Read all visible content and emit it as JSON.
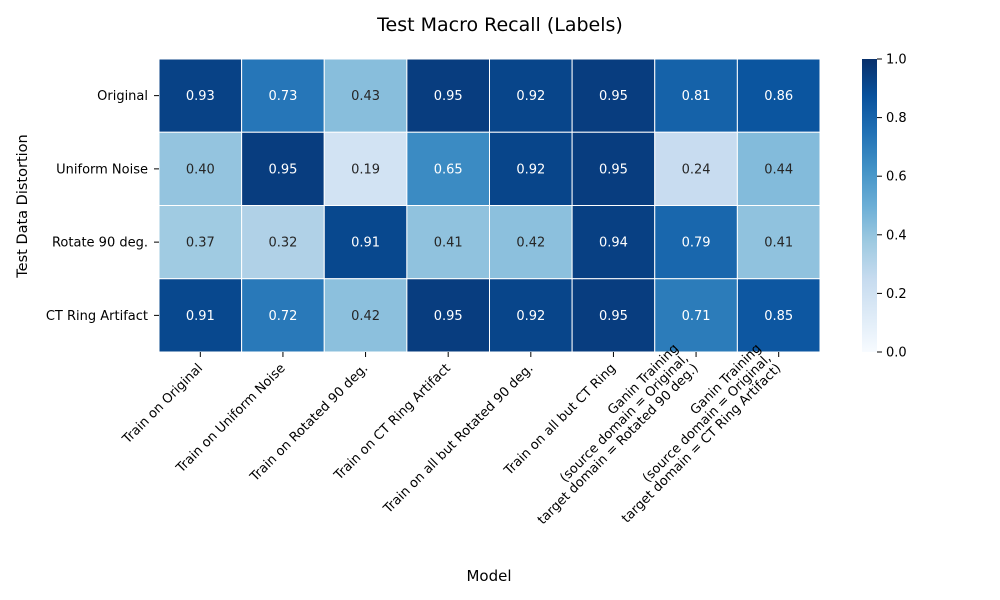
{
  "chart_data": {
    "type": "heatmap",
    "title": "Test Macro Recall (Labels)",
    "xlabel": "Model",
    "ylabel": "Test Data Distortion",
    "rows": [
      "Original",
      "Uniform Noise",
      "Rotate 90 deg.",
      "CT Ring Artifact"
    ],
    "columns": [
      [
        "Train on Original"
      ],
      [
        "Train on Uniform Noise"
      ],
      [
        "Train on Rotated 90 deg."
      ],
      [
        "Train on CT Ring Artifact"
      ],
      [
        "Train on all but Rotated 90 deg."
      ],
      [
        "Train on all but CT Ring"
      ],
      [
        "Ganin Training",
        "(source domain = Original,",
        "target domain = Rotated 90 deg.)"
      ],
      [
        "Ganin Training",
        "(source domain = Original,",
        "target domain = CT Ring Artifact)"
      ]
    ],
    "values": [
      [
        0.93,
        0.73,
        0.43,
        0.95,
        0.92,
        0.95,
        0.81,
        0.86
      ],
      [
        0.4,
        0.95,
        0.19,
        0.65,
        0.92,
        0.95,
        0.24,
        0.44
      ],
      [
        0.37,
        0.32,
        0.91,
        0.41,
        0.42,
        0.94,
        0.79,
        0.41
      ],
      [
        0.91,
        0.72,
        0.42,
        0.95,
        0.92,
        0.95,
        0.71,
        0.85
      ]
    ],
    "value_labels": [
      [
        "0.93",
        "0.73",
        "0.43",
        "0.95",
        "0.92",
        "0.95",
        "0.81",
        "0.86"
      ],
      [
        "0.40",
        "0.95",
        "0.19",
        "0.65",
        "0.92",
        "0.95",
        "0.24",
        "0.44"
      ],
      [
        "0.37",
        "0.32",
        "0.91",
        "0.41",
        "0.42",
        "0.94",
        "0.79",
        "0.41"
      ],
      [
        "0.91",
        "0.72",
        "0.42",
        "0.95",
        "0.92",
        "0.95",
        "0.71",
        "0.85"
      ]
    ],
    "colormap": "Blues",
    "vmin": 0,
    "vmax": 1,
    "colorbar_ticks": [
      "0.0",
      "0.2",
      "0.4",
      "0.6",
      "0.8",
      "1.0"
    ]
  }
}
